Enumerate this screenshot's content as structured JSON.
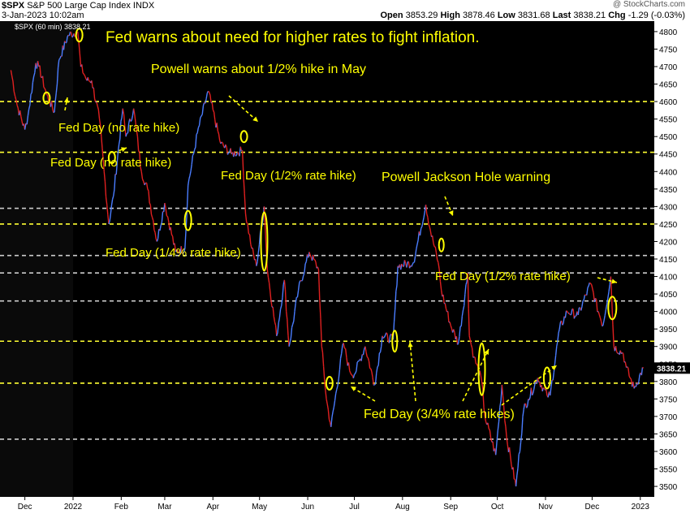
{
  "header": {
    "symbol": "$SPX",
    "name": "S&P 500 Large Cap Index",
    "exchange": "INDX",
    "date": "3-Jan-2023 10:02am",
    "open_label": "Open",
    "open": "3853.29",
    "high_label": "High",
    "high": "3878.46",
    "low_label": "Low",
    "low": "3831.68",
    "last_label": "Last",
    "last": "3838.21",
    "chg_label": "Chg",
    "chg": "-1.29 (-0.03%)",
    "brand": "@ StockCharts.com"
  },
  "legend": "$SPX (60 min) 3838.21",
  "chart_data": {
    "type": "line",
    "title": "$SPX S&P 500 Large Cap Index INDX",
    "xlabel": "",
    "ylabel": "",
    "ylim": [
      3470,
      4830
    ],
    "x_ticks": [
      "Dec",
      "2022",
      "Feb",
      "Mar",
      "Apr",
      "May",
      "Jun",
      "Jul",
      "Aug",
      "Sep",
      "Oct",
      "Nov",
      "Dec",
      "2023"
    ],
    "y_ticks": [
      3500,
      3550,
      3600,
      3650,
      3700,
      3750,
      3800,
      3850,
      3900,
      3950,
      4000,
      4050,
      4100,
      4150,
      4200,
      4250,
      4300,
      4350,
      4400,
      4450,
      4500,
      4550,
      4600,
      4650,
      4700,
      4750,
      4800
    ],
    "last_value": 3838.21,
    "series": [
      {
        "name": "$SPX (60 min)",
        "points": [
          [
            "2021-11-22",
            4690
          ],
          [
            "2021-11-26",
            4590
          ],
          [
            "2021-12-01",
            4520
          ],
          [
            "2021-12-03",
            4560
          ],
          [
            "2021-12-08",
            4710
          ],
          [
            "2021-12-10",
            4700
          ],
          [
            "2021-12-15",
            4620
          ],
          [
            "2021-12-17",
            4600
          ],
          [
            "2021-12-20",
            4570
          ],
          [
            "2021-12-23",
            4720
          ],
          [
            "2021-12-29",
            4790
          ],
          [
            "2022-01-04",
            4800
          ],
          [
            "2022-01-06",
            4700
          ],
          [
            "2022-01-10",
            4660
          ],
          [
            "2022-01-13",
            4660
          ],
          [
            "2022-01-18",
            4550
          ],
          [
            "2022-01-21",
            4400
          ],
          [
            "2022-01-24",
            4250
          ],
          [
            "2022-01-27",
            4330
          ],
          [
            "2022-02-02",
            4580
          ],
          [
            "2022-02-04",
            4500
          ],
          [
            "2022-02-09",
            4580
          ],
          [
            "2022-02-14",
            4400
          ],
          [
            "2022-02-18",
            4350
          ],
          [
            "2022-02-24",
            4200
          ],
          [
            "2022-03-01",
            4310
          ],
          [
            "2022-03-08",
            4170
          ],
          [
            "2022-03-14",
            4180
          ],
          [
            "2022-03-16",
            4360
          ],
          [
            "2022-03-22",
            4510
          ],
          [
            "2022-03-29",
            4630
          ],
          [
            "2022-04-06",
            4480
          ],
          [
            "2022-04-13",
            4450
          ],
          [
            "2022-04-20",
            4460
          ],
          [
            "2022-04-22",
            4280
          ],
          [
            "2022-04-26",
            4180
          ],
          [
            "2022-04-29",
            4130
          ],
          [
            "2022-05-04",
            4300
          ],
          [
            "2022-05-06",
            4120
          ],
          [
            "2022-05-12",
            3930
          ],
          [
            "2022-05-17",
            4090
          ],
          [
            "2022-05-20",
            3900
          ],
          [
            "2022-05-26",
            4060
          ],
          [
            "2022-06-02",
            4170
          ],
          [
            "2022-06-08",
            4120
          ],
          [
            "2022-06-10",
            3900
          ],
          [
            "2022-06-13",
            3750
          ],
          [
            "2022-06-16",
            3670
          ],
          [
            "2022-06-24",
            3910
          ],
          [
            "2022-06-28",
            3830
          ],
          [
            "2022-07-01",
            3820
          ],
          [
            "2022-07-08",
            3900
          ],
          [
            "2022-07-14",
            3790
          ],
          [
            "2022-07-19",
            3930
          ],
          [
            "2022-07-26",
            3920
          ],
          [
            "2022-07-29",
            4130
          ],
          [
            "2022-08-08",
            4140
          ],
          [
            "2022-08-16",
            4305
          ],
          [
            "2022-08-19",
            4230
          ],
          [
            "2022-08-24",
            4140
          ],
          [
            "2022-08-26",
            4060
          ],
          [
            "2022-09-01",
            3960
          ],
          [
            "2022-09-06",
            3910
          ],
          [
            "2022-09-12",
            4110
          ],
          [
            "2022-09-13",
            3930
          ],
          [
            "2022-09-16",
            3870
          ],
          [
            "2022-09-21",
            3800
          ],
          [
            "2022-09-23",
            3700
          ],
          [
            "2022-09-30",
            3590
          ],
          [
            "2022-10-04",
            3790
          ],
          [
            "2022-10-07",
            3640
          ],
          [
            "2022-10-13",
            3500
          ],
          [
            "2022-10-18",
            3720
          ],
          [
            "2022-10-21",
            3750
          ],
          [
            "2022-10-27",
            3810
          ],
          [
            "2022-11-02",
            3760
          ],
          [
            "2022-11-04",
            3760
          ],
          [
            "2022-11-10",
            3950
          ],
          [
            "2022-11-15",
            4000
          ],
          [
            "2022-11-22",
            3990
          ],
          [
            "2022-11-30",
            4080
          ],
          [
            "2022-12-05",
            4000
          ],
          [
            "2022-12-08",
            3960
          ],
          [
            "2022-12-13",
            4100
          ],
          [
            "2022-12-15",
            3900
          ],
          [
            "2022-12-21",
            3880
          ],
          [
            "2022-12-23",
            3840
          ],
          [
            "2022-12-28",
            3780
          ],
          [
            "2023-01-03",
            3838
          ]
        ]
      }
    ],
    "reference_lines": [
      {
        "style": "dashed",
        "color": "#ffff33",
        "y": 4600
      },
      {
        "style": "dashed",
        "color": "#ffff33",
        "y": 4455
      },
      {
        "style": "dashed",
        "color": "#cccccc",
        "y": 4295
      },
      {
        "style": "dashed",
        "color": "#ffff33",
        "y": 4250
      },
      {
        "style": "dashed",
        "color": "#cccccc",
        "y": 4160
      },
      {
        "style": "dashed",
        "color": "#cccccc",
        "y": 4110
      },
      {
        "style": "dashed",
        "color": "#cccccc",
        "y": 4030
      },
      {
        "style": "dashed",
        "color": "#ffff33",
        "y": 3915
      },
      {
        "style": "dashed",
        "color": "#ffff33",
        "y": 3795
      },
      {
        "style": "dashed",
        "color": "#cccccc",
        "y": 3635
      }
    ],
    "annotations": [
      {
        "text": "Fed warns about need for higher rates to fight inflation.",
        "date": "2022-01-05",
        "y": 4790
      },
      {
        "text": "Powell warns about 1/2% hike in May",
        "date": "2022-04-21",
        "y": 4500
      },
      {
        "text": "Fed Day (no rate hike)",
        "date": "2021-12-15",
        "y": 4610
      },
      {
        "text": "Fed Day (no rate hike)",
        "date": "2022-01-26",
        "y": 4440
      },
      {
        "text": "Fed Day (1/2% rate hike)",
        "date": "2022-05-04",
        "y": 4200
      },
      {
        "text": "Powell Jackson Hole warning",
        "date": "2022-08-26",
        "y": 4190
      },
      {
        "text": "Fed Day (1/4% rate hike)",
        "date": "2022-03-16",
        "y": 4260
      },
      {
        "text": "Fed Day (1/2% rate hike)",
        "date": "2022-12-14",
        "y": 4010
      },
      {
        "text": "Fed Day (3/4% rate hikes)",
        "dates": [
          "2022-06-15",
          "2022-07-27",
          "2022-09-21",
          "2022-11-02"
        ],
        "y": 3700
      }
    ],
    "grid": false,
    "background": "#000000",
    "up_color": "#4a7dff",
    "down_color": "#e02020",
    "annotation_color": "#ffff00"
  }
}
